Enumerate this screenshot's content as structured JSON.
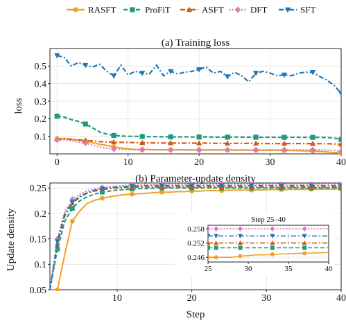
{
  "legend": {
    "placement": "top",
    "items": [
      {
        "label": "RASFT",
        "color": "#f0a224",
        "marker": "circle",
        "dash": "solid"
      },
      {
        "label": "ProFiT",
        "color": "#1e9b7a",
        "marker": "square",
        "dash": "dashed"
      },
      {
        "label": "ASFT",
        "color": "#d35b0f",
        "marker": "triangle-up",
        "dash": "dashdot"
      },
      {
        "label": "DFT",
        "color": "#d97ab8",
        "marker": "diamond",
        "dash": "dotted"
      },
      {
        "label": "SFT",
        "color": "#1f77b4",
        "marker": "triangle-down",
        "dash": "dashdot"
      }
    ]
  },
  "chart_data": [
    {
      "type": "line",
      "title": "(a) Training loss",
      "xlabel": "",
      "ylabel": "loss",
      "xlim": [
        -1,
        40
      ],
      "ylim": [
        0.0,
        0.6
      ],
      "xticks": [
        0,
        10,
        20,
        30,
        40
      ],
      "yticks": [
        0.1,
        0.2,
        0.3,
        0.4,
        0.5
      ],
      "grid": true,
      "x": [
        0,
        1,
        2,
        3,
        4,
        5,
        6,
        7,
        8,
        9,
        10,
        11,
        12,
        13,
        14,
        15,
        16,
        17,
        18,
        19,
        20,
        21,
        22,
        23,
        24,
        25,
        26,
        27,
        28,
        29,
        30,
        31,
        32,
        33,
        34,
        35,
        36,
        37,
        38,
        39,
        40
      ],
      "series": [
        {
          "name": "RASFT",
          "values": [
            0.085,
            0.088,
            0.083,
            0.078,
            0.072,
            0.064,
            0.055,
            0.048,
            0.04,
            0.033,
            0.028,
            0.025,
            0.024,
            0.024,
            0.023,
            0.023,
            0.023,
            0.023,
            0.022,
            0.022,
            0.022,
            0.022,
            0.022,
            0.022,
            0.022,
            0.021,
            0.021,
            0.021,
            0.021,
            0.02,
            0.02,
            0.02,
            0.019,
            0.019,
            0.018,
            0.017,
            0.016,
            0.014,
            0.011,
            0.007,
            0.004
          ]
        },
        {
          "name": "ProFiT",
          "values": [
            0.215,
            0.21,
            0.195,
            0.185,
            0.17,
            0.148,
            0.125,
            0.112,
            0.105,
            0.102,
            0.1,
            0.1,
            0.099,
            0.098,
            0.098,
            0.097,
            0.097,
            0.096,
            0.097,
            0.096,
            0.096,
            0.097,
            0.095,
            0.095,
            0.095,
            0.096,
            0.095,
            0.095,
            0.095,
            0.094,
            0.095,
            0.094,
            0.094,
            0.094,
            0.094,
            0.094,
            0.094,
            0.094,
            0.093,
            0.09,
            0.082
          ]
        },
        {
          "name": "ASFT",
          "values": [
            0.085,
            0.085,
            0.083,
            0.08,
            0.077,
            0.074,
            0.07,
            0.068,
            0.067,
            0.066,
            0.065,
            0.064,
            0.063,
            0.063,
            0.062,
            0.062,
            0.062,
            0.061,
            0.061,
            0.061,
            0.061,
            0.061,
            0.06,
            0.06,
            0.06,
            0.06,
            0.06,
            0.06,
            0.06,
            0.059,
            0.059,
            0.059,
            0.059,
            0.059,
            0.059,
            0.059,
            0.058,
            0.058,
            0.058,
            0.057,
            0.055
          ]
        },
        {
          "name": "DFT",
          "values": [
            0.08,
            0.078,
            0.074,
            0.068,
            0.062,
            0.05,
            0.04,
            0.032,
            0.028,
            0.026,
            0.025,
            0.024,
            0.024,
            0.024,
            0.023,
            0.023,
            0.023,
            0.023,
            0.023,
            0.023,
            0.023,
            0.023,
            0.023,
            0.023,
            0.023,
            0.023,
            0.023,
            0.023,
            0.023,
            0.023,
            0.023,
            0.023,
            0.023,
            0.023,
            0.023,
            0.023,
            0.023,
            0.023,
            0.022,
            0.02,
            0.015
          ]
        },
        {
          "name": "SFT",
          "values": [
            0.56,
            0.55,
            0.5,
            0.52,
            0.505,
            0.495,
            0.51,
            0.47,
            0.445,
            0.505,
            0.45,
            0.47,
            0.46,
            0.455,
            0.505,
            0.445,
            0.47,
            0.455,
            0.465,
            0.47,
            0.48,
            0.495,
            0.46,
            0.47,
            0.44,
            0.465,
            0.445,
            0.41,
            0.46,
            0.47,
            0.46,
            0.445,
            0.45,
            0.445,
            0.46,
            0.465,
            0.465,
            0.44,
            0.42,
            0.39,
            0.345
          ]
        }
      ]
    },
    {
      "type": "line",
      "title": "(b) Parameter-update density",
      "xlabel": "Step",
      "ylabel": "Update density",
      "xlim": [
        1,
        40
      ],
      "ylim": [
        0.05,
        0.26
      ],
      "xticks": [
        10,
        20,
        30,
        40
      ],
      "yticks": [
        0.05,
        0.1,
        0.15,
        0.2,
        0.25
      ],
      "grid": true,
      "x": [
        1,
        2,
        3,
        4,
        5,
        6,
        7,
        8,
        9,
        10,
        11,
        12,
        13,
        14,
        15,
        16,
        17,
        18,
        19,
        20,
        21,
        22,
        23,
        24,
        25,
        26,
        27,
        28,
        29,
        30,
        31,
        32,
        33,
        34,
        35,
        36,
        37,
        38,
        39,
        40
      ],
      "series": [
        {
          "name": "RASFT",
          "values": [
            0.05,
            0.05,
            0.12,
            0.185,
            0.205,
            0.22,
            0.226,
            0.23,
            0.233,
            0.235,
            0.237,
            0.238,
            0.239,
            0.24,
            0.241,
            0.242,
            0.242,
            0.243,
            0.243,
            0.244,
            0.244,
            0.245,
            0.245,
            0.245,
            0.246,
            0.246,
            0.246,
            0.246,
            0.2465,
            0.2467,
            0.247,
            0.247,
            0.2472,
            0.2474,
            0.2475,
            0.2476,
            0.2477,
            0.2478,
            0.2479,
            0.248
          ]
        },
        {
          "name": "ProFiT",
          "values": [
            0.05,
            0.13,
            0.185,
            0.21,
            0.225,
            0.233,
            0.238,
            0.242,
            0.244,
            0.246,
            0.247,
            0.248,
            0.249,
            0.249,
            0.25,
            0.25,
            0.25,
            0.25,
            0.25,
            0.25,
            0.25,
            0.25,
            0.25,
            0.25,
            0.25,
            0.25,
            0.25,
            0.25,
            0.25,
            0.25,
            0.25,
            0.25,
            0.25,
            0.25,
            0.25,
            0.25,
            0.25,
            0.25,
            0.25,
            0.25
          ]
        },
        {
          "name": "ASFT",
          "values": [
            0.05,
            0.14,
            0.195,
            0.22,
            0.232,
            0.24,
            0.244,
            0.247,
            0.249,
            0.25,
            0.251,
            0.252,
            0.252,
            0.252,
            0.252,
            0.252,
            0.252,
            0.252,
            0.252,
            0.252,
            0.252,
            0.252,
            0.252,
            0.252,
            0.252,
            0.252,
            0.252,
            0.252,
            0.252,
            0.252,
            0.252,
            0.252,
            0.252,
            0.252,
            0.252,
            0.252,
            0.252,
            0.252,
            0.252,
            0.252
          ]
        },
        {
          "name": "DFT",
          "values": [
            0.05,
            0.15,
            0.205,
            0.228,
            0.238,
            0.245,
            0.249,
            0.251,
            0.253,
            0.254,
            0.255,
            0.256,
            0.256,
            0.257,
            0.257,
            0.257,
            0.258,
            0.258,
            0.258,
            0.258,
            0.258,
            0.258,
            0.258,
            0.258,
            0.258,
            0.258,
            0.258,
            0.258,
            0.258,
            0.258,
            0.258,
            0.258,
            0.258,
            0.258,
            0.258,
            0.258,
            0.258,
            0.258,
            0.258,
            0.258
          ]
        },
        {
          "name": "SFT",
          "values": [
            0.05,
            0.145,
            0.2,
            0.222,
            0.234,
            0.241,
            0.246,
            0.249,
            0.251,
            0.252,
            0.253,
            0.254,
            0.254,
            0.255,
            0.255,
            0.255,
            0.255,
            0.255,
            0.255,
            0.255,
            0.255,
            0.255,
            0.255,
            0.255,
            0.255,
            0.255,
            0.255,
            0.255,
            0.255,
            0.255,
            0.255,
            0.255,
            0.255,
            0.255,
            0.255,
            0.255,
            0.255,
            0.255,
            0.255,
            0.255
          ]
        }
      ],
      "inset": {
        "title": "Step 25–40",
        "xlim": [
          25,
          40
        ],
        "ylim": [
          0.244,
          0.2595
        ],
        "xticks": [
          25,
          30,
          35,
          40
        ],
        "yticks": [
          0.246,
          0.252,
          0.258
        ]
      }
    }
  ]
}
